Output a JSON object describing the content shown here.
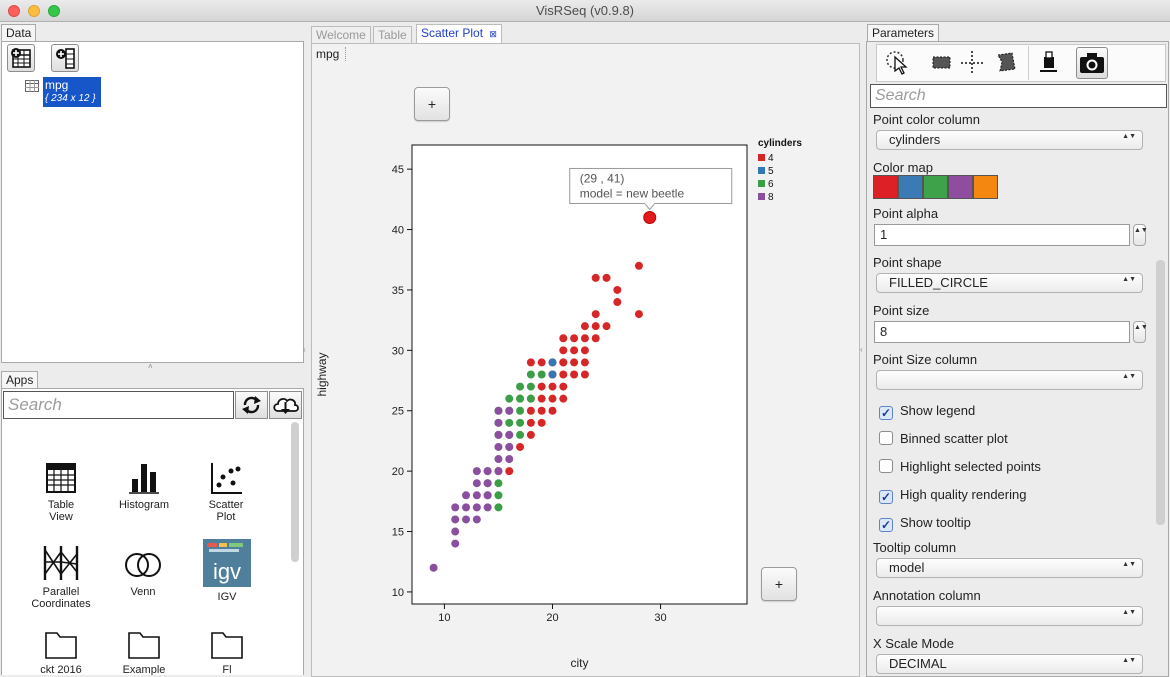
{
  "window": {
    "title": "VisRSeq (v0.9.8)"
  },
  "data_panel": {
    "tab_label": "Data",
    "dataset": {
      "name": "mpg",
      "dims": "{ 234 x 12 }"
    }
  },
  "apps_panel": {
    "tab_label": "Apps",
    "search_placeholder": "Search",
    "apps": [
      {
        "label_line1": "Table",
        "label_line2": "View"
      },
      {
        "label_line1": "Histogram",
        "label_line2": ""
      },
      {
        "label_line1": "Scatter",
        "label_line2": "Plot"
      },
      {
        "label_line1": "Parallel",
        "label_line2": "Coordinates"
      },
      {
        "label_line1": "Venn",
        "label_line2": ""
      },
      {
        "label_line1": "IGV",
        "label_line2": ""
      }
    ],
    "folders": [
      {
        "label": "ckt 2016"
      },
      {
        "label": "Example"
      },
      {
        "label": "Fl"
      }
    ]
  },
  "doc_tabs": [
    {
      "label": "Welcome"
    },
    {
      "label": "Table"
    },
    {
      "label": "Scatter Plot",
      "close_glyph": "⊠"
    }
  ],
  "plot_area": {
    "source_label": "mpg",
    "zoom_button_label": "+",
    "tooltip": {
      "line1": "(29 , 41)",
      "line2": "model = new beetle"
    }
  },
  "chart_data": {
    "type": "scatter",
    "xlabel": "city",
    "ylabel": "highway",
    "xlim": [
      7,
      38
    ],
    "ylim": [
      9,
      47
    ],
    "xticks": [
      10,
      20,
      30
    ],
    "yticks": [
      10,
      15,
      20,
      25,
      30,
      35,
      40,
      45
    ],
    "legend": {
      "title": "cylinders",
      "placement": "right",
      "entries": [
        {
          "label": "4",
          "color": "#d62728"
        },
        {
          "label": "5",
          "color": "#3477b5"
        },
        {
          "label": "6",
          "color": "#3c9e46"
        },
        {
          "label": "8",
          "color": "#8a4f9e"
        }
      ]
    },
    "series": [
      {
        "name": "4",
        "color": "#d62728",
        "points": [
          [
            18,
            29
          ],
          [
            19,
            29
          ],
          [
            20,
            29
          ],
          [
            21,
            29
          ],
          [
            21,
            31
          ],
          [
            22,
            31
          ],
          [
            23,
            31
          ],
          [
            21,
            30
          ],
          [
            22,
            30
          ],
          [
            23,
            30
          ],
          [
            24,
            31
          ],
          [
            23,
            29
          ],
          [
            21,
            28
          ],
          [
            22,
            28
          ],
          [
            23,
            28
          ],
          [
            24,
            32
          ],
          [
            25,
            32
          ],
          [
            24,
            33
          ],
          [
            23,
            32
          ],
          [
            24,
            36
          ],
          [
            25,
            36
          ],
          [
            26,
            35
          ],
          [
            26,
            34
          ],
          [
            28,
            37
          ],
          [
            28,
            33
          ],
          [
            29,
            41
          ],
          [
            19,
            27
          ],
          [
            20,
            27
          ],
          [
            21,
            27
          ],
          [
            19,
            26
          ],
          [
            20,
            26
          ],
          [
            21,
            26
          ],
          [
            18,
            26
          ],
          [
            18,
            25
          ],
          [
            19,
            25
          ],
          [
            20,
            25
          ],
          [
            18,
            24
          ],
          [
            19,
            24
          ],
          [
            18,
            23
          ],
          [
            17,
            22
          ],
          [
            15,
            20
          ],
          [
            16,
            20
          ],
          [
            20,
            28
          ],
          [
            21,
            29
          ],
          [
            22,
            29
          ]
        ]
      },
      {
        "name": "5",
        "color": "#3477b5",
        "points": [
          [
            20,
            28
          ],
          [
            20,
            29
          ]
        ]
      },
      {
        "name": "6",
        "color": "#3c9e46",
        "points": [
          [
            18,
            28
          ],
          [
            19,
            28
          ],
          [
            17,
            27
          ],
          [
            18,
            27
          ],
          [
            16,
            26
          ],
          [
            17,
            26
          ],
          [
            15,
            25
          ],
          [
            16,
            25
          ],
          [
            17,
            25
          ],
          [
            15,
            24
          ],
          [
            16,
            24
          ],
          [
            17,
            24
          ],
          [
            15,
            23
          ],
          [
            16,
            23
          ],
          [
            17,
            23
          ],
          [
            16,
            22
          ],
          [
            14,
            20
          ],
          [
            15,
            19
          ],
          [
            14,
            19
          ],
          [
            15,
            18
          ],
          [
            14,
            18
          ],
          [
            15,
            17
          ],
          [
            18,
            26
          ],
          [
            17,
            26
          ]
        ]
      },
      {
        "name": "8",
        "color": "#8a4f9e",
        "points": [
          [
            9,
            12
          ],
          [
            11,
            14
          ],
          [
            11,
            15
          ],
          [
            11,
            16
          ],
          [
            11,
            17
          ],
          [
            12,
            16
          ],
          [
            13,
            16
          ],
          [
            12,
            17
          ],
          [
            13,
            17
          ],
          [
            14,
            17
          ],
          [
            12,
            18
          ],
          [
            13,
            18
          ],
          [
            14,
            18
          ],
          [
            13,
            19
          ],
          [
            14,
            19
          ],
          [
            15,
            20
          ],
          [
            13,
            20
          ],
          [
            14,
            20
          ],
          [
            15,
            21
          ],
          [
            16,
            21
          ],
          [
            15,
            22
          ],
          [
            15,
            23
          ],
          [
            15,
            24
          ],
          [
            15,
            25
          ],
          [
            16,
            25
          ],
          [
            16,
            23
          ],
          [
            16,
            22
          ]
        ]
      }
    ]
  },
  "parameters_panel": {
    "tab_label": "Parameters",
    "search_placeholder": "Search",
    "point_color_column": {
      "label": "Point color column",
      "value": "cylinders"
    },
    "color_map": {
      "label": "Color map",
      "colors": [
        "#dd1f26",
        "#3a7bb6",
        "#3da24a",
        "#8f4da0",
        "#f4870f"
      ]
    },
    "point_alpha": {
      "label": "Point alpha",
      "value": "1"
    },
    "point_shape": {
      "label": "Point shape",
      "value": "FILLED_CIRCLE"
    },
    "point_size": {
      "label": "Point size",
      "value": "8"
    },
    "point_size_column": {
      "label": "Point Size column",
      "value": ""
    },
    "checkboxes": [
      {
        "label": "Show legend",
        "checked": true
      },
      {
        "label": "Binned scatter plot",
        "checked": false
      },
      {
        "label": "Highlight selected points",
        "checked": false
      },
      {
        "label": "High quality rendering",
        "checked": true
      },
      {
        "label": "Show tooltip",
        "checked": true
      }
    ],
    "tooltip_column": {
      "label": "Tooltip column",
      "value": "model"
    },
    "annotation_column": {
      "label": "Annotation column",
      "value": ""
    },
    "x_scale_mode": {
      "label": "X Scale Mode",
      "value": "DECIMAL"
    },
    "check_glyph": "✓",
    "arrows_glyph": "▲▼"
  }
}
